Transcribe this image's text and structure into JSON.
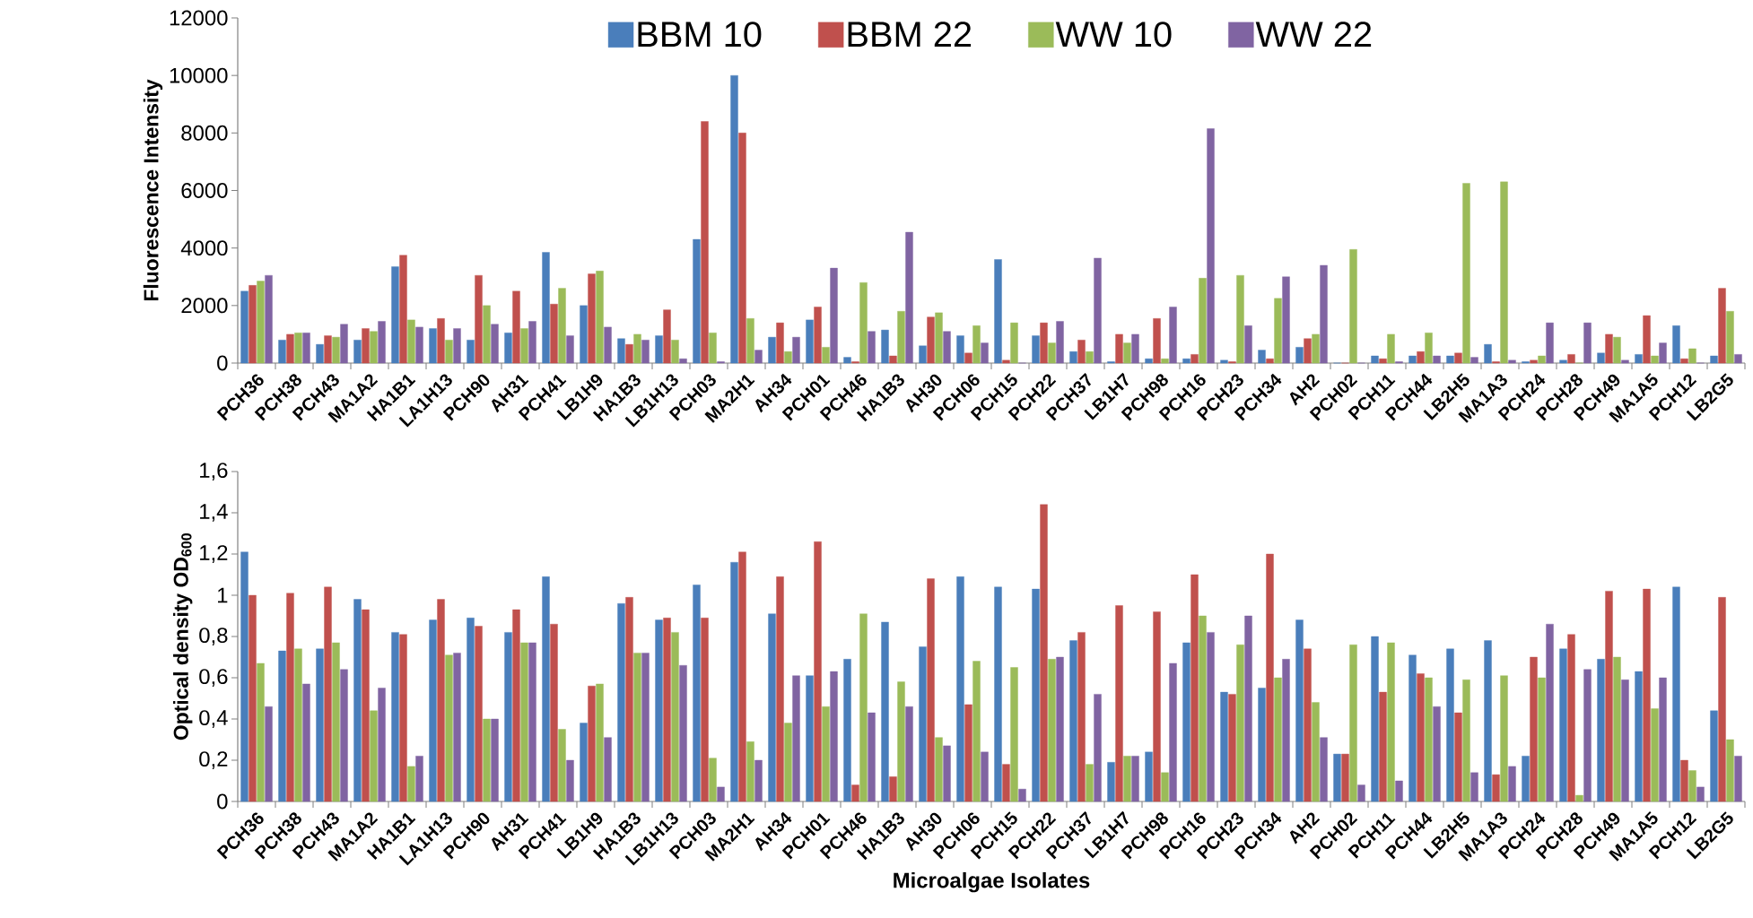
{
  "chart_data": [
    {
      "type": "bar",
      "ylabel": "Fluorescence Intensity",
      "legend": "top",
      "categories": [
        "PCH36",
        "PCH38",
        "PCH43",
        "MA1A2",
        "HA1B1",
        "LA1H13",
        "PCH90",
        "AH31",
        "PCH41",
        "LB1H9",
        "HA1B3",
        "LB1H13",
        "PCH03",
        "MA2H1",
        "AH34",
        "PCH01",
        "PCH46",
        "HA1B3",
        "AH30",
        "PCH06",
        "PCH15",
        "PCH22",
        "PCH37",
        "LB1H7",
        "PCH98",
        "PCH16",
        "PCH23",
        "PCH34",
        "AH2",
        "PCH02",
        "PCH11",
        "PCH44",
        "LB2H5",
        "MA1A3",
        "PCH24",
        "PCH28",
        "PCH49",
        "MA1A5",
        "PCH12",
        "LB2G5"
      ],
      "ylim": [
        0,
        12000
      ],
      "yticks": [
        0,
        2000,
        4000,
        6000,
        8000,
        10000,
        12000
      ],
      "series": [
        {
          "name": "BBM 10",
          "color": "#4a7ebb",
          "values": [
            2500,
            800,
            650,
            800,
            3350,
            1200,
            800,
            1050,
            3850,
            2000,
            850,
            950,
            4300,
            10000,
            900,
            1500,
            200,
            1150,
            600,
            950,
            3600,
            950,
            400,
            50,
            150,
            150,
            100,
            450,
            550,
            0,
            250,
            250,
            250,
            650,
            50,
            100,
            350,
            300,
            1300,
            250
          ]
        },
        {
          "name": "BBM 22",
          "color": "#c0504d",
          "values": [
            2700,
            1000,
            950,
            1200,
            3750,
            1550,
            3050,
            2500,
            2050,
            3100,
            650,
            1850,
            8400,
            8000,
            1400,
            1950,
            50,
            250,
            1600,
            350,
            100,
            1400,
            800,
            1000,
            1550,
            300,
            50,
            150,
            850,
            0,
            150,
            400,
            350,
            50,
            100,
            300,
            1000,
            1650,
            150,
            2600
          ]
        },
        {
          "name": "WW 10",
          "color": "#9bbb59",
          "values": [
            2850,
            1050,
            900,
            1100,
            1500,
            800,
            2000,
            1200,
            2600,
            3200,
            1000,
            800,
            1050,
            1550,
            400,
            550,
            2800,
            1800,
            1750,
            1300,
            1400,
            700,
            400,
            700,
            150,
            2950,
            3050,
            2250,
            1000,
            3950,
            1000,
            1050,
            6250,
            6300,
            250,
            0,
            900,
            250,
            500,
            1800
          ]
        },
        {
          "name": "WW 22",
          "color": "#8064a2",
          "values": [
            3050,
            1050,
            1350,
            1450,
            1250,
            1200,
            1350,
            1450,
            950,
            1250,
            800,
            150,
            50,
            450,
            900,
            3300,
            1100,
            4550,
            1100,
            700,
            0,
            1450,
            3650,
            1000,
            1950,
            8150,
            1300,
            3000,
            3400,
            0,
            50,
            250,
            200,
            100,
            1400,
            1400,
            100,
            700,
            0,
            300
          ]
        }
      ]
    },
    {
      "type": "bar",
      "ylabel": "Optical density OD$_{600}$",
      "xlabel": "Microalgae Isolates",
      "categories": [
        "PCH36",
        "PCH38",
        "PCH43",
        "MA1A2",
        "HA1B1",
        "LA1H13",
        "PCH90",
        "AH31",
        "PCH41",
        "LB1H9",
        "HA1B3",
        "LB1H13",
        "PCH03",
        "MA2H1",
        "AH34",
        "PCH01",
        "PCH46",
        "HA1B3",
        "AH30",
        "PCH06",
        "PCH15",
        "PCH22",
        "PCH37",
        "LB1H7",
        "PCH98",
        "PCH16",
        "PCH23",
        "PCH34",
        "AH2",
        "PCH02",
        "PCH11",
        "PCH44",
        "LB2H5",
        "MA1A3",
        "PCH24",
        "PCH28",
        "PCH49",
        "MA1A5",
        "PCH12",
        "LB2G5"
      ],
      "ylim": [
        0,
        1.6
      ],
      "yticks": [
        0,
        {
          "value": 0.2,
          "label": "0,2"
        },
        {
          "value": 0.4,
          "label": "0,4"
        },
        {
          "value": 0.6,
          "label": "0,6"
        },
        {
          "value": 0.8,
          "label": "0,8"
        },
        1,
        {
          "value": 1.2,
          "label": "1,2"
        },
        {
          "value": 1.4,
          "label": "1,4"
        },
        {
          "value": 1.6,
          "label": "1,6"
        }
      ],
      "series": [
        {
          "color": "#4a7ebb",
          "values": [
            1.21,
            0.73,
            0.74,
            0.98,
            0.82,
            0.88,
            0.89,
            0.82,
            1.09,
            0.38,
            0.96,
            0.88,
            1.05,
            1.16,
            0.91,
            0.61,
            0.69,
            0.87,
            0.75,
            1.09,
            1.04,
            1.03,
            0.78,
            0.19,
            0.24,
            0.77,
            0.53,
            0.55,
            0.88,
            0.23,
            0.8,
            0.71,
            0.74,
            0.78,
            0.22,
            0.74,
            0.69,
            0.63,
            1.04,
            0.44
          ]
        },
        {
          "color": "#c0504d",
          "values": [
            1.0,
            1.01,
            1.04,
            0.93,
            0.81,
            0.98,
            0.85,
            0.93,
            0.86,
            0.56,
            0.99,
            0.89,
            0.89,
            1.21,
            1.09,
            1.26,
            0.08,
            0.12,
            1.08,
            0.47,
            0.18,
            1.44,
            0.82,
            0.95,
            0.92,
            1.1,
            0.52,
            1.2,
            0.74,
            0.23,
            0.53,
            0.62,
            0.43,
            0.13,
            0.7,
            0.81,
            1.02,
            1.03,
            0.2,
            0.99
          ]
        },
        {
          "color": "#9bbb59",
          "values": [
            0.67,
            0.74,
            0.77,
            0.44,
            0.17,
            0.71,
            0.4,
            0.77,
            0.35,
            0.57,
            0.72,
            0.82,
            0.21,
            0.29,
            0.38,
            0.46,
            0.91,
            0.58,
            0.31,
            0.68,
            0.65,
            0.69,
            0.18,
            0.22,
            0.14,
            0.9,
            0.76,
            0.6,
            0.48,
            0.76,
            0.77,
            0.6,
            0.59,
            0.61,
            0.6,
            0.03,
            0.7,
            0.45,
            0.15,
            0.3
          ]
        },
        {
          "color": "#8064a2",
          "values": [
            0.46,
            0.57,
            0.64,
            0.55,
            0.22,
            0.72,
            0.4,
            0.77,
            0.2,
            0.31,
            0.72,
            0.66,
            0.07,
            0.2,
            0.61,
            0.63,
            0.43,
            0.46,
            0.27,
            0.24,
            0.06,
            0.7,
            0.52,
            0.22,
            0.67,
            0.82,
            0.9,
            0.69,
            0.31,
            0.08,
            0.1,
            0.46,
            0.14,
            0.17,
            0.86,
            0.64,
            0.59,
            0.6,
            0.07,
            0.22
          ]
        }
      ]
    }
  ]
}
